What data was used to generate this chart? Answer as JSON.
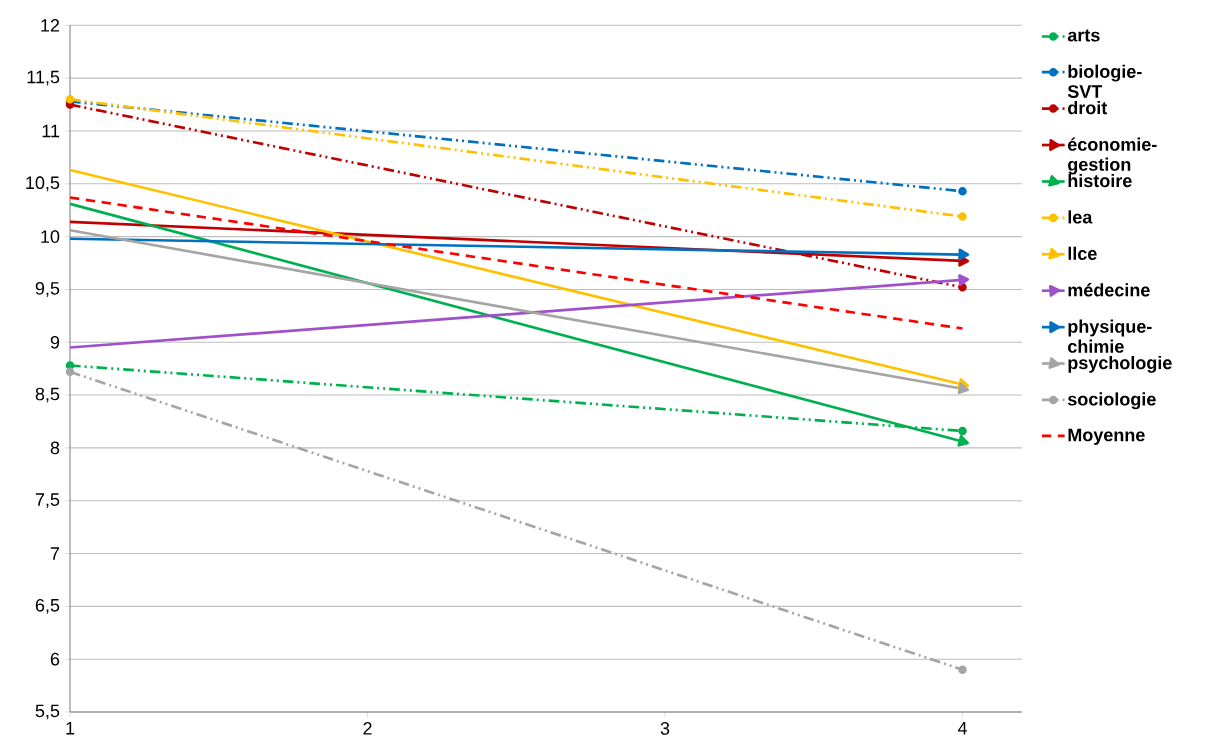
{
  "chart_data": {
    "type": "line",
    "x": [
      1,
      4
    ],
    "xlim": [
      1,
      4.2
    ],
    "xticks": [
      1,
      2,
      3,
      4
    ],
    "ylim": [
      5.5,
      12
    ],
    "yticks": [
      {
        "value": 5.5,
        "label": "5,5"
      },
      {
        "value": 6,
        "label": "6"
      },
      {
        "value": 6.5,
        "label": "6,5"
      },
      {
        "value": 7,
        "label": "7"
      },
      {
        "value": 7.5,
        "label": "7,5"
      },
      {
        "value": 8,
        "label": "8"
      },
      {
        "value": 8.5,
        "label": "8,5"
      },
      {
        "value": 9,
        "label": "9"
      },
      {
        "value": 9.5,
        "label": "9,5"
      },
      {
        "value": 10,
        "label": "10"
      },
      {
        "value": 10.5,
        "label": "10,5"
      },
      {
        "value": 11,
        "label": "11"
      },
      {
        "value": 11.5,
        "label": "11,5"
      },
      {
        "value": 12,
        "label": "12"
      }
    ],
    "grid": "y",
    "legend": "right",
    "series": [
      {
        "name": "arts",
        "color": "#00b050",
        "values": [
          8.78,
          8.16
        ],
        "line_style": "dashdotted",
        "marker": "circle"
      },
      {
        "name": "biologie-SVT",
        "color": "#0070c0",
        "values": [
          11.28,
          10.43
        ],
        "line_style": "dashdotted",
        "marker": "circle"
      },
      {
        "name": "droit",
        "color": "#c00000",
        "values": [
          11.25,
          9.52
        ],
        "line_style": "dashdotted",
        "marker": "circle"
      },
      {
        "name": "économie-gestion",
        "color": "#c00000",
        "values": [
          10.14,
          9.77
        ],
        "line_style": "solid",
        "marker": "triangle"
      },
      {
        "name": "histoire",
        "color": "#00b050",
        "values": [
          10.31,
          8.06
        ],
        "line_style": "solid",
        "marker": "triangle"
      },
      {
        "name": "lea",
        "color": "#ffc000",
        "values": [
          11.3,
          10.19
        ],
        "line_style": "dashdotted",
        "marker": "circle"
      },
      {
        "name": "llce",
        "color": "#ffc000",
        "values": [
          10.63,
          8.6
        ],
        "line_style": "solid",
        "marker": "triangle"
      },
      {
        "name": "médecine",
        "color": "#a050c8",
        "values": [
          8.95,
          9.59
        ],
        "line_style": "solid",
        "marker": "triangle"
      },
      {
        "name": "physique-chimie",
        "color": "#0070c0",
        "values": [
          9.98,
          9.83
        ],
        "line_style": "solid",
        "marker": "triangle"
      },
      {
        "name": "psychologie",
        "color": "#a5a5a5",
        "values": [
          10.06,
          8.56
        ],
        "line_style": "solid",
        "marker": "triangle"
      },
      {
        "name": "sociologie",
        "color": "#a5a5a5",
        "values": [
          8.72,
          5.9
        ],
        "line_style": "dashdotted",
        "marker": "circle"
      },
      {
        "name": "Moyenne",
        "color": "#ff0000",
        "values": [
          10.37,
          9.13
        ],
        "line_style": "dashed",
        "marker": "none"
      }
    ]
  }
}
